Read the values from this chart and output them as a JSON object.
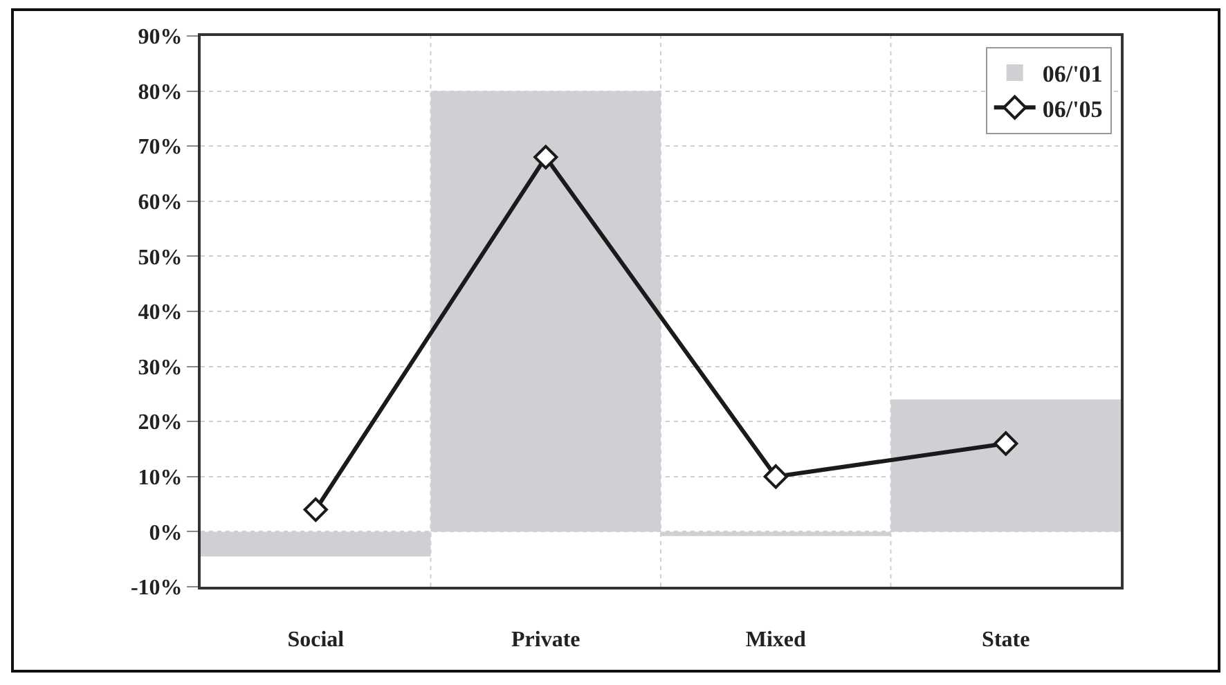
{
  "chart_data": {
    "type": "bar",
    "categories": [
      "Social",
      "Private",
      "Mixed",
      "State"
    ],
    "series": [
      {
        "name": "06/'01",
        "color": "#cfd0d3",
        "values": [
          -4.5,
          80,
          -0.8,
          24
        ]
      },
      {
        "name": "06/'05",
        "type": "line",
        "color": "#1a1a1a",
        "values": [
          4,
          68,
          10,
          16
        ],
        "marker": "diamond",
        "line_style": "solid"
      }
    ],
    "ylim": [
      -10,
      90
    ],
    "yticks": [
      {
        "value": -10,
        "label": "-10%"
      },
      {
        "value": 0,
        "label": "0%"
      },
      {
        "value": 10,
        "label": "10%"
      },
      {
        "value": 20,
        "label": "20%"
      },
      {
        "value": 30,
        "label": "30%"
      },
      {
        "value": 40,
        "label": "40%"
      },
      {
        "value": 50,
        "label": "50%"
      },
      {
        "value": 60,
        "label": "60%"
      },
      {
        "value": 70,
        "label": "70%"
      },
      {
        "value": 80,
        "label": "80%"
      },
      {
        "value": 90,
        "label": "90%"
      }
    ],
    "grid": true,
    "legend": "top right"
  }
}
